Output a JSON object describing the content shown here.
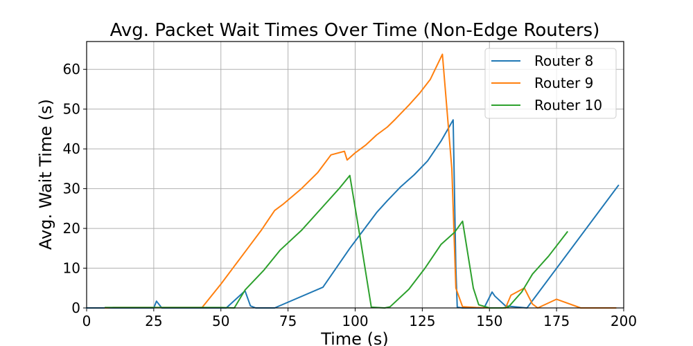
{
  "chart_data": {
    "type": "line",
    "title": "Avg. Packet Wait Times Over Time (Non-Edge Routers)",
    "xlabel": "Time (s)",
    "ylabel": "Avg. Wait Time (s)",
    "xlim": [
      0,
      200
    ],
    "ylim": [
      0,
      67
    ],
    "xticks": [
      0,
      25,
      50,
      75,
      100,
      125,
      150,
      175,
      200
    ],
    "yticks": [
      0,
      10,
      20,
      30,
      40,
      50,
      60
    ],
    "grid": true,
    "legend_position": "top-right",
    "series": [
      {
        "name": "Router 8",
        "color": "#1f77b4",
        "x": [
          0,
          6,
          25,
          26,
          28,
          50,
          52,
          59,
          61,
          63,
          70,
          88,
          98,
          108,
          112,
          117,
          122,
          127,
          132,
          136.5,
          137.5,
          138,
          140,
          148,
          151,
          152,
          156,
          164,
          198
        ],
        "y": [
          0,
          0,
          0,
          1.7,
          0,
          0,
          0,
          4.3,
          0.5,
          0,
          0,
          5.2,
          15,
          24,
          27,
          30.5,
          33.5,
          37,
          42,
          47.3,
          10,
          0.2,
          0,
          0,
          4,
          3,
          0.5,
          0,
          30.8
        ]
      },
      {
        "name": "Router 9",
        "color": "#ff7f0e",
        "x": [
          7,
          10,
          20,
          30,
          43,
          50,
          55,
          60,
          65,
          70,
          73,
          80,
          86,
          91,
          96,
          97,
          100,
          104,
          108,
          112,
          115,
          120,
          124,
          128,
          132.5,
          136,
          137.5,
          140,
          145,
          150,
          156,
          158,
          163,
          166,
          168,
          175,
          184,
          197
        ],
        "y": [
          0,
          0.1,
          0.1,
          0.1,
          0.1,
          6,
          10.5,
          15,
          19.5,
          24.5,
          26,
          30,
          34,
          38.5,
          39.4,
          37.2,
          39,
          41,
          43.5,
          45.5,
          47.5,
          51,
          54,
          57.5,
          63.8,
          35,
          5,
          0.3,
          0.1,
          0,
          0,
          3.2,
          5,
          1,
          0,
          2.2,
          0,
          0
        ]
      },
      {
        "name": "Router 10",
        "color": "#2ca02c",
        "x": [
          7,
          50,
          55,
          59,
          66,
          72,
          80,
          88,
          94,
          98,
          102,
          106,
          111,
          113,
          120,
          126,
          132,
          137,
          140,
          144,
          146,
          150,
          155,
          157,
          162,
          166,
          172,
          179
        ],
        "y": [
          0.1,
          0.1,
          0,
          4.5,
          9.5,
          14.5,
          19.5,
          25.5,
          30,
          33.3,
          17,
          0.2,
          0,
          0.3,
          4.7,
          10,
          16,
          19,
          21.8,
          5,
          0.8,
          0,
          0,
          0.2,
          4,
          8.5,
          13,
          19.1
        ]
      }
    ]
  }
}
